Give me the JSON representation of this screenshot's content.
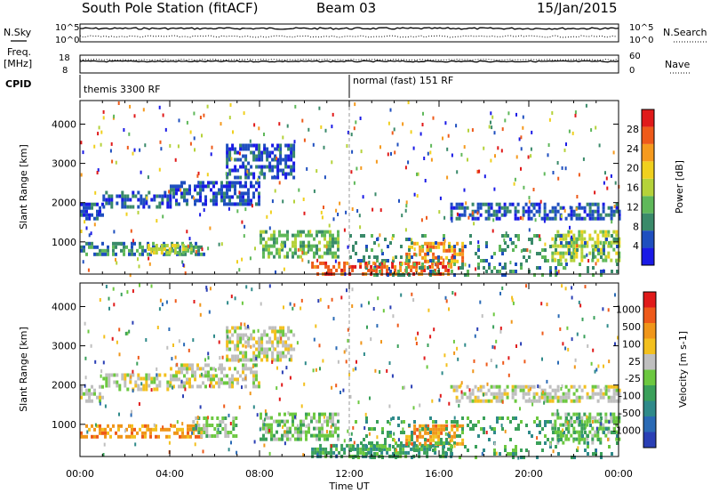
{
  "header": {
    "station": "South Pole Station (fitACF)",
    "beam": "Beam 03",
    "date": "15/Jan/2015"
  },
  "status_panels": {
    "nsky_label": "N.Sky",
    "nsky_ticks": [
      "10^5",
      "10^0"
    ],
    "nsearch_label": "N.Search",
    "nsearch_ticks": [
      "10^5",
      "10^0"
    ],
    "freq_label_1": "Freq.",
    "freq_label_2": "[MHz]",
    "freq_ticks": [
      "18",
      "8"
    ],
    "nave_label": "Nave",
    "nave_ticks": [
      "60",
      "0"
    ],
    "cpid_label": "CPID",
    "cpid_segments": [
      {
        "name": "themis 3300 RF",
        "start": 0,
        "end": 12
      },
      {
        "name": "normal (fast) 151 RF",
        "start": 12,
        "end": 24
      }
    ]
  },
  "chart_data": [
    {
      "type": "heatmap",
      "quantity": "Power",
      "ylabel": "Slant Range [km]",
      "xlabel": "Time UT",
      "xlim": [
        0,
        24
      ],
      "ylim": [
        180,
        4600
      ],
      "xticks": [
        "00:00",
        "04:00",
        "08:00",
        "12:00",
        "16:00",
        "20:00",
        "00:00"
      ],
      "yticks": [
        "1000",
        "2000",
        "3000",
        "4000"
      ],
      "colorbar": {
        "label": "Power [dB]",
        "ticks": [
          "4",
          "8",
          "12",
          "16",
          "20",
          "24",
          "28"
        ],
        "colors": [
          "#1a1ae6",
          "#1f4fbf",
          "#3a8a6a",
          "#5fb85a",
          "#b5d23a",
          "#f0d01e",
          "#f59a1e",
          "#ee5a1a",
          "#e01a1a"
        ]
      },
      "echo_bands": [
        {
          "t0": 0.0,
          "t1": 1.0,
          "r0": 1550,
          "r1": 2000,
          "level": 1
        },
        {
          "t0": 1.0,
          "t1": 4.0,
          "r0": 1900,
          "r1": 2300,
          "level": 1
        },
        {
          "t0": 4.0,
          "t1": 8.0,
          "r0": 2000,
          "r1": 2550,
          "level": 1
        },
        {
          "t0": 6.5,
          "t1": 9.5,
          "r0": 2600,
          "r1": 3500,
          "level": 1
        },
        {
          "t0": 0.0,
          "t1": 5.5,
          "r0": 650,
          "r1": 1000,
          "level": 2
        },
        {
          "t0": 3.0,
          "t1": 5.0,
          "r0": 750,
          "r1": 950,
          "level": 4
        },
        {
          "t0": 8.0,
          "t1": 11.5,
          "r0": 600,
          "r1": 1300,
          "level": 3
        },
        {
          "t0": 10.3,
          "t1": 16.5,
          "r0": 220,
          "r1": 500,
          "level": 7
        },
        {
          "t0": 14.5,
          "t1": 17.0,
          "r0": 500,
          "r1": 1000,
          "level": 6
        },
        {
          "t0": 16.5,
          "t1": 24.0,
          "r0": 1550,
          "r1": 2000,
          "level": 1
        },
        {
          "t0": 21.0,
          "t1": 24.0,
          "r0": 550,
          "r1": 1300,
          "level": 4
        },
        {
          "t0": 12.0,
          "t1": 24.0,
          "r0": 180,
          "r1": 1200,
          "level": 2
        }
      ]
    },
    {
      "type": "heatmap",
      "quantity": "Velocity",
      "ylabel": "Slant Range [km]",
      "xlabel": "Time UT",
      "xlim": [
        0,
        24
      ],
      "ylim": [
        180,
        4600
      ],
      "xticks": [
        "00:00",
        "04:00",
        "08:00",
        "12:00",
        "16:00",
        "20:00",
        "00:00"
      ],
      "yticks": [
        "1000",
        "2000",
        "3000",
        "4000"
      ],
      "colorbar": {
        "label": "Velocity [m s-1]",
        "ticks": [
          "1000",
          "500",
          "100",
          "25",
          "-25",
          "-100",
          "-500",
          "-1000"
        ],
        "colors": [
          "#2a3fb5",
          "#2a6ab5",
          "#2f8a8a",
          "#3aa05a",
          "#6cc840",
          "#bfbfbf",
          "#f3c01e",
          "#f0961a",
          "#ee5a1a",
          "#e01a1a"
        ]
      },
      "echo_bands": [
        {
          "t0": 0.0,
          "t1": 1.0,
          "r0": 1550,
          "r1": 2000,
          "level": 5
        },
        {
          "t0": 1.0,
          "t1": 4.0,
          "r0": 1900,
          "r1": 2300,
          "level": 5
        },
        {
          "t0": 4.0,
          "t1": 8.0,
          "r0": 2000,
          "r1": 2550,
          "level": 5
        },
        {
          "t0": 6.5,
          "t1": 9.5,
          "r0": 2600,
          "r1": 3500,
          "level": 5
        },
        {
          "t0": 0.0,
          "t1": 5.5,
          "r0": 650,
          "r1": 1000,
          "level": 7
        },
        {
          "t0": 5.0,
          "t1": 7.0,
          "r0": 700,
          "r1": 1200,
          "level": 4
        },
        {
          "t0": 8.0,
          "t1": 11.5,
          "r0": 600,
          "r1": 1300,
          "level": 4
        },
        {
          "t0": 10.3,
          "t1": 16.5,
          "r0": 220,
          "r1": 500,
          "level": 3
        },
        {
          "t0": 14.5,
          "t1": 17.0,
          "r0": 500,
          "r1": 1000,
          "level": 7
        },
        {
          "t0": 16.5,
          "t1": 24.0,
          "r0": 1550,
          "r1": 2000,
          "level": 5
        },
        {
          "t0": 21.0,
          "t1": 24.0,
          "r0": 550,
          "r1": 1300,
          "level": 4
        },
        {
          "t0": 12.0,
          "t1": 24.0,
          "r0": 180,
          "r1": 1200,
          "level": 3
        }
      ]
    }
  ]
}
